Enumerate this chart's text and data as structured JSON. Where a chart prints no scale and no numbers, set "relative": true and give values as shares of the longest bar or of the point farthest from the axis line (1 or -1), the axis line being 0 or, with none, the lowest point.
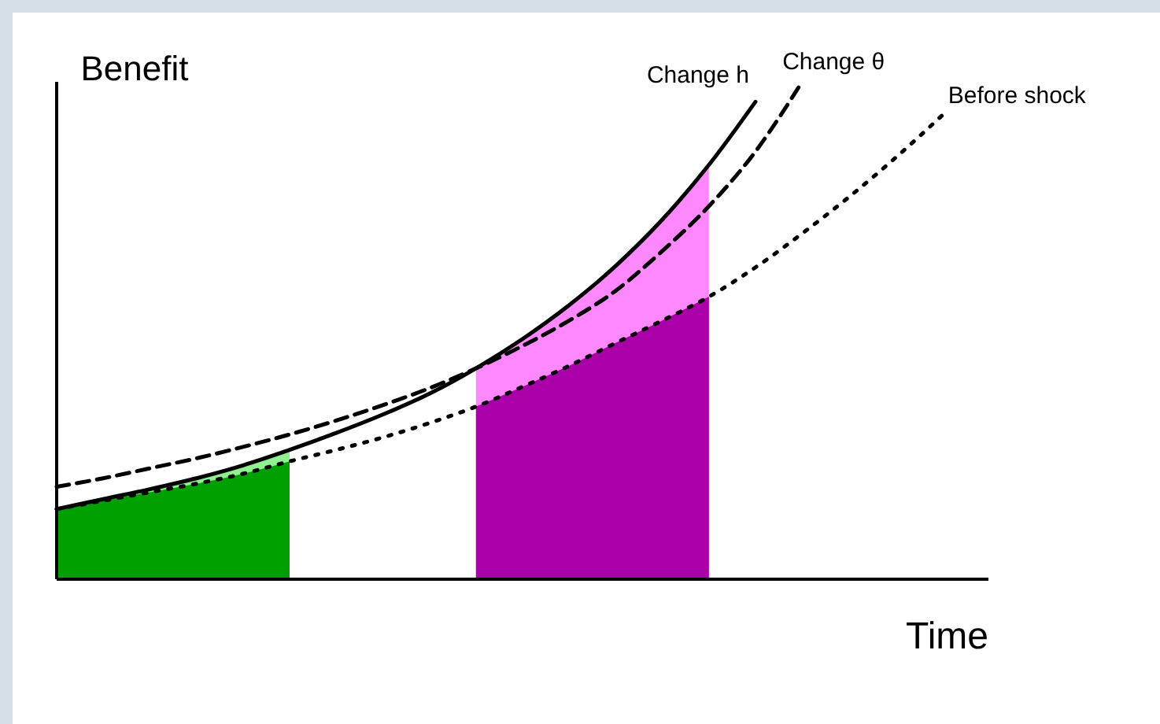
{
  "chart_data": {
    "type": "line",
    "relative": true,
    "xlabel": "Time",
    "ylabel": "Benefit",
    "categories": [
      null,
      null,
      null,
      null,
      null,
      null,
      null,
      null,
      null,
      null,
      null,
      null,
      null,
      null,
      null,
      null,
      null,
      null,
      null,
      null,
      null
    ],
    "series": [
      {
        "type": "area",
        "color": "#90f090",
        "values": [
          0.141,
          0.161,
          0.181,
          0.203,
          0.229,
          0.26,
          null,
          null,
          null,
          null,
          null,
          null,
          null,
          null,
          null,
          null,
          null,
          null,
          null,
          null,
          null
        ]
      },
      {
        "type": "area",
        "color": "#00a000",
        "values": [
          0.141,
          0.158,
          0.175,
          0.192,
          0.212,
          0.237,
          null,
          null,
          null,
          null,
          null,
          null,
          null,
          null,
          null,
          null,
          null,
          null,
          null,
          null,
          null
        ]
      },
      {
        "type": "area",
        "color": "#ff88ff",
        "values": [
          null,
          null,
          null,
          null,
          null,
          null,
          null,
          null,
          null,
          0.424,
          0.483,
          0.551,
          0.63,
          0.723,
          0.833,
          null,
          null,
          null,
          null,
          null,
          null
        ]
      },
      {
        "type": "area",
        "color": "#aa00aa",
        "values": [
          null,
          null,
          null,
          null,
          null,
          null,
          null,
          null,
          null,
          0.347,
          0.387,
          0.429,
          0.475,
          0.52,
          0.568,
          null,
          null,
          null,
          null,
          null,
          null
        ]
      },
      {
        "name": "Change h",
        "color": "#000000",
        "line_style": "solid",
        "values": [
          0.141,
          0.161,
          0.181,
          0.203,
          0.229,
          0.26,
          0.294,
          0.331,
          0.373,
          0.424,
          0.483,
          0.551,
          0.63,
          0.723,
          0.833,
          0.96,
          null,
          null,
          null,
          null,
          null
        ]
      },
      {
        "name": "Change θ",
        "color": "#000000",
        "line_style": "dashed",
        "values": [
          0.186,
          0.203,
          0.223,
          0.243,
          0.266,
          0.291,
          0.319,
          0.35,
          0.384,
          0.424,
          0.469,
          0.52,
          0.58,
          0.66,
          0.75,
          0.86,
          1,
          null,
          null,
          null,
          null
        ]
      },
      {
        "name": "Before shock",
        "color": "#000000",
        "line_style": "dotted",
        "values": [
          0.141,
          0.158,
          0.175,
          0.192,
          0.212,
          0.237,
          0.26,
          0.285,
          0.314,
          0.347,
          0.387,
          0.429,
          0.475,
          0.52,
          0.568,
          0.627,
          0.695,
          0.768,
          0.847,
          0.932,
          null
        ]
      }
    ]
  }
}
